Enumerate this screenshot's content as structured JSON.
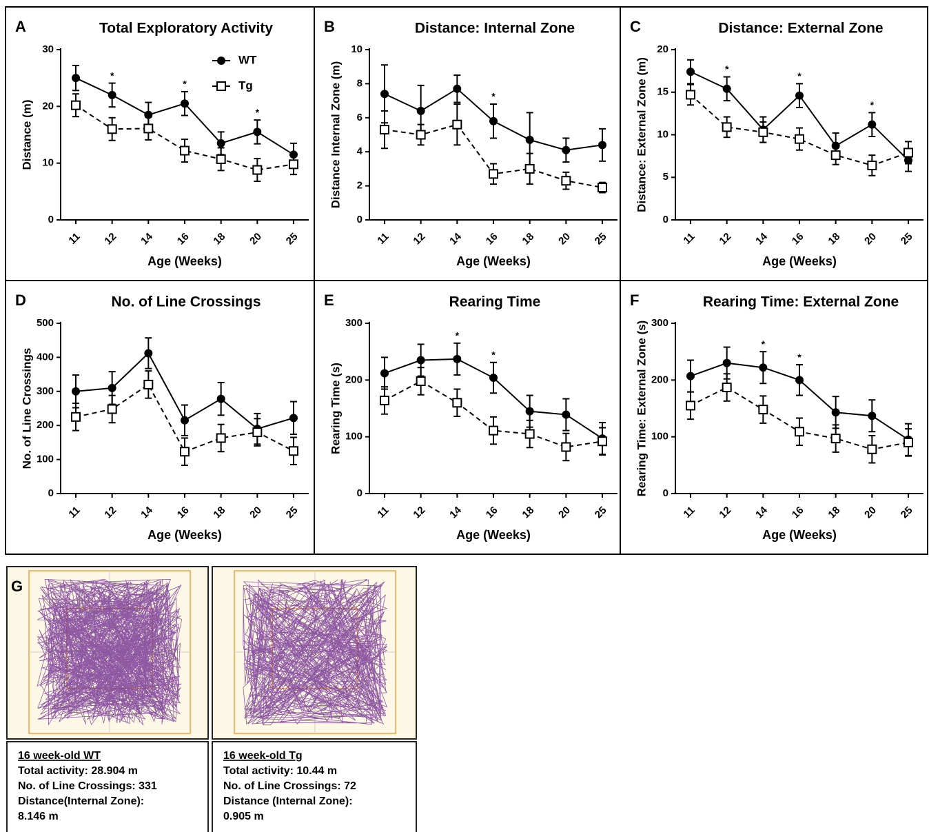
{
  "chart_data": [
    {
      "type": "line",
      "label": "A",
      "title": "Total Exploratory Activity",
      "xlabel": "Age (Weeks)",
      "ylabel": "Distance (m)",
      "categories": [
        "11",
        "12",
        "14",
        "16",
        "18",
        "20",
        "25"
      ],
      "ylim": [
        0,
        30
      ],
      "yticks": [
        0,
        10,
        20,
        30
      ],
      "legend": "upper center",
      "series": [
        {
          "name": "WT",
          "color": "#000000",
          "marker": "circle",
          "linestyle": "solid",
          "values": [
            25,
            22,
            18.5,
            20.5,
            13.5,
            15.5,
            11.5
          ],
          "errors": [
            2.2,
            2.1,
            2.2,
            2.1,
            2,
            2.1,
            2
          ]
        },
        {
          "name": "Tg",
          "color": "#000000",
          "marker": "square",
          "linestyle": "dashed",
          "values": [
            20.2,
            16,
            16.1,
            12.2,
            10.7,
            8.8,
            9.8
          ],
          "errors": [
            2,
            2,
            2,
            2,
            2,
            2,
            1.8
          ]
        }
      ],
      "annotations": [
        {
          "text": "*",
          "x": "12"
        },
        {
          "text": "*",
          "x": "16"
        },
        {
          "text": "*",
          "x": "20"
        }
      ]
    },
    {
      "type": "line",
      "label": "B",
      "title": "Distance: Internal Zone",
      "xlabel": "Age (Weeks)",
      "ylabel": "Distance Internal Zone (m)",
      "categories": [
        "11",
        "12",
        "14",
        "16",
        "18",
        "20",
        "25"
      ],
      "ylim": [
        0,
        10
      ],
      "yticks": [
        0,
        2,
        4,
        6,
        8,
        10
      ],
      "series": [
        {
          "name": "WT",
          "color": "#000000",
          "marker": "circle",
          "linestyle": "solid",
          "values": [
            7.4,
            6.4,
            7.7,
            5.8,
            4.7,
            4.1,
            4.4
          ],
          "errors": [
            1.7,
            1.5,
            0.8,
            1,
            1.6,
            0.7,
            0.95
          ]
        },
        {
          "name": "Tg",
          "color": "#000000",
          "marker": "square",
          "linestyle": "dashed",
          "values": [
            5.3,
            5,
            5.6,
            2.7,
            3,
            2.3,
            1.9
          ],
          "errors": [
            1.1,
            0.6,
            1.2,
            0.6,
            0.9,
            0.5,
            0.3
          ]
        }
      ],
      "annotations": [
        {
          "text": "*",
          "x": "16"
        }
      ]
    },
    {
      "type": "line",
      "label": "C",
      "title": "Distance: External Zone",
      "xlabel": "Age (Weeks)",
      "ylabel": "Distance: External Zone (m)",
      "categories": [
        "11",
        "12",
        "14",
        "16",
        "18",
        "20",
        "25"
      ],
      "ylim": [
        0,
        20
      ],
      "yticks": [
        0,
        5,
        10,
        15,
        20
      ],
      "series": [
        {
          "name": "WT",
          "color": "#000000",
          "marker": "circle",
          "linestyle": "solid",
          "values": [
            17.4,
            15.4,
            10.6,
            14.6,
            8.7,
            11.2,
            7
          ],
          "errors": [
            1.4,
            1.4,
            1.5,
            1.4,
            1.5,
            1.4,
            1.3
          ]
        },
        {
          "name": "Tg",
          "color": "#000000",
          "marker": "square",
          "linestyle": "dashed",
          "values": [
            14.7,
            10.9,
            10.3,
            9.5,
            7.6,
            6.4,
            7.9
          ],
          "errors": [
            1.2,
            1.2,
            1.2,
            1.3,
            1.1,
            1.2,
            1.3
          ]
        }
      ],
      "annotations": [
        {
          "text": "*",
          "x": "12"
        },
        {
          "text": "*",
          "x": "16"
        },
        {
          "text": "*",
          "x": "20"
        }
      ]
    },
    {
      "type": "line",
      "label": "D",
      "title": "No. of Line Crossings",
      "xlabel": "Age (Weeks)",
      "ylabel": "No. of Line Crossings",
      "categories": [
        "11",
        "12",
        "14",
        "16",
        "18",
        "20",
        "25"
      ],
      "ylim": [
        0,
        500
      ],
      "yticks": [
        0,
        100,
        200,
        300,
        400,
        500
      ],
      "series": [
        {
          "name": "WT",
          "color": "#000000",
          "marker": "circle",
          "linestyle": "solid",
          "values": [
            300,
            310,
            412,
            215,
            278,
            190,
            222
          ],
          "errors": [
            48,
            48,
            45,
            45,
            48,
            45,
            48
          ]
        },
        {
          "name": "Tg",
          "color": "#000000",
          "marker": "square",
          "linestyle": "dashed",
          "values": [
            225,
            248,
            320,
            123,
            163,
            180,
            125
          ],
          "errors": [
            40,
            40,
            40,
            40,
            40,
            40,
            40
          ]
        }
      ],
      "annotations": []
    },
    {
      "type": "line",
      "label": "E",
      "title": "Rearing Time",
      "xlabel": "Age (Weeks)",
      "ylabel": "Rearing Time (s)",
      "categories": [
        "11",
        "12",
        "14",
        "16",
        "18",
        "20",
        "25"
      ],
      "ylim": [
        0,
        300
      ],
      "yticks": [
        0,
        100,
        200,
        300
      ],
      "series": [
        {
          "name": "WT",
          "color": "#000000",
          "marker": "circle",
          "linestyle": "solid",
          "values": [
            212,
            235,
            237,
            204,
            145,
            139,
            97
          ],
          "errors": [
            28,
            28,
            28,
            27,
            28,
            28,
            28
          ]
        },
        {
          "name": "Tg",
          "color": "#000000",
          "marker": "square",
          "linestyle": "dashed",
          "values": [
            164,
            198,
            160,
            111,
            105,
            82,
            92
          ],
          "errors": [
            24,
            24,
            24,
            24,
            24,
            24,
            24
          ]
        }
      ],
      "annotations": [
        {
          "text": "*",
          "x": "14"
        },
        {
          "text": "*",
          "x": "16"
        }
      ]
    },
    {
      "type": "line",
      "label": "F",
      "title": "Rearing Time: External Zone",
      "xlabel": "Age (Weeks)",
      "ylabel": "Rearing Time: External Zone (s)",
      "categories": [
        "11",
        "12",
        "14",
        "16",
        "18",
        "20",
        "25"
      ],
      "ylim": [
        0,
        300
      ],
      "yticks": [
        0,
        100,
        200,
        300
      ],
      "series": [
        {
          "name": "WT",
          "color": "#000000",
          "marker": "circle",
          "linestyle": "solid",
          "values": [
            207,
            230,
            222,
            200,
            143,
            137,
            95
          ],
          "errors": [
            28,
            28,
            28,
            27,
            28,
            28,
            28
          ]
        },
        {
          "name": "Tg",
          "color": "#000000",
          "marker": "square",
          "linestyle": "dashed",
          "values": [
            155,
            187,
            148,
            109,
            97,
            78,
            90
          ],
          "errors": [
            24,
            24,
            24,
            24,
            24,
            24,
            24
          ]
        }
      ],
      "annotations": [
        {
          "text": "*",
          "x": "14"
        },
        {
          "text": "*",
          "x": "16"
        }
      ]
    }
  ],
  "track_panel": {
    "label": "G",
    "recordings": [
      {
        "title": "16 week-old WT",
        "lines": [
          "Total activity: 28.904 m",
          "No. of Line Crossings: 331",
          "Distance(Internal Zone):",
          "8.146 m"
        ]
      },
      {
        "title": "16 week-old Tg",
        "lines": [
          "Total activity: 10.44 m",
          "No. of Line Crossings: 72",
          "Distance (Internal Zone):",
          "0.905 m"
        ]
      }
    ]
  }
}
